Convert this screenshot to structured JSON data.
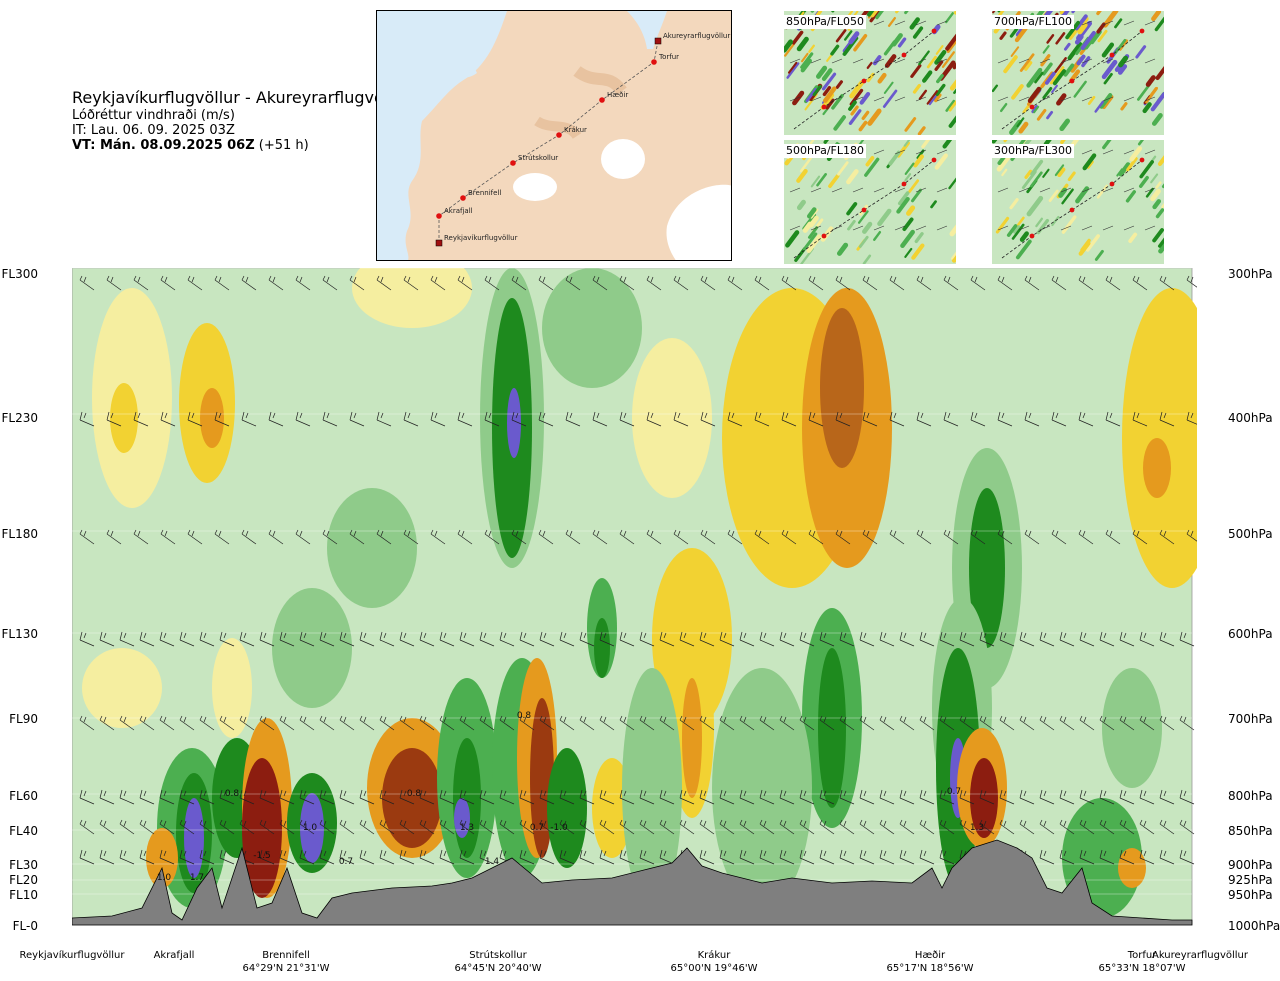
{
  "header": {
    "route": "Reykjavíkurflugvöllur - Akureyrarflugvöllur",
    "variable": "Lóðréttur vindhraði (m/s)",
    "issue_time": "IT: Lau. 06. 09. 2025 03Z",
    "valid_prefix": "VT: Mán. 08.09.2025 06Z",
    "valid_offset": "(+51 h)"
  },
  "map": {
    "points": [
      {
        "label": "Reykjavíkurflugvöllur",
        "kind": "airport"
      },
      {
        "label": "Akrafjall",
        "kind": "waypoint"
      },
      {
        "label": "Brennifell",
        "kind": "waypoint"
      },
      {
        "label": "Strútskollur",
        "kind": "waypoint"
      },
      {
        "label": "Krákur",
        "kind": "waypoint"
      },
      {
        "label": "Hæðir",
        "kind": "waypoint"
      },
      {
        "label": "Torfur",
        "kind": "waypoint"
      },
      {
        "label": "Akureyrarflugvöllur",
        "kind": "airport"
      }
    ]
  },
  "thumbnails": [
    {
      "label": "850hPa/FL050"
    },
    {
      "label": "700hPa/FL100"
    },
    {
      "label": "500hPa/FL180"
    },
    {
      "label": "300hPa/FL300"
    }
  ],
  "levels": [
    {
      "fl": "FL300",
      "hpa": "300hPa"
    },
    {
      "fl": "FL230",
      "hpa": "400hPa"
    },
    {
      "fl": "FL180",
      "hpa": "500hPa"
    },
    {
      "fl": "FL130",
      "hpa": "600hPa"
    },
    {
      "fl": "FL90",
      "hpa": "700hPa"
    },
    {
      "fl": "FL60",
      "hpa": "800hPa"
    },
    {
      "fl": "FL40",
      "hpa": "850hPa"
    },
    {
      "fl": "FL30",
      "hpa": "900hPa"
    },
    {
      "fl": "FL20",
      "hpa": "925hPa"
    },
    {
      "fl": "FL10",
      "hpa": "950hPa"
    },
    {
      "fl": "FL-0",
      "hpa": "1000hPa"
    }
  ],
  "locations": [
    {
      "name": "Reykjavíkurflugvöllur",
      "coord": ""
    },
    {
      "name": "Akrafjall",
      "coord": ""
    },
    {
      "name": "Brennifell",
      "coord": "64°29'N 21°31'W"
    },
    {
      "name": "Strútskollur",
      "coord": "64°45'N 20°40'W"
    },
    {
      "name": "Krákur",
      "coord": "65°00'N 19°46'W"
    },
    {
      "name": "Hæðir",
      "coord": "65°17'N 18°56'W"
    },
    {
      "name": "Torfur",
      "coord": "65°33'N 18°07'W"
    },
    {
      "name": "Akureyrarflugvöllur",
      "coord": ""
    }
  ],
  "contour_labels": [
    "1.0",
    "1.7",
    "0.8",
    "1.0",
    "0.7",
    "0.8",
    "1.3",
    "1.4",
    "0.8",
    "0.7",
    "-1.0",
    "0.7",
    "1.3",
    "-1.5"
  ],
  "colors": {
    "strong_updraft_1": "#1e8a1e",
    "updraft_2": "#4caf50",
    "updraft_3": "#8fcb8a",
    "weak_updraft": "#c8e6c0",
    "calm": "#f4f9e8",
    "weak_downdraft": "#f5eea0",
    "downdraft_2": "#f2d232",
    "downdraft_3": "#e59a1e",
    "strong_downdraft": "#8c1d10",
    "extreme_updraft": "#6a5acd",
    "terrain": "#7f7f7f",
    "sea": "#d8ebf8",
    "land": "#f3d8bd",
    "glacier": "#ffffff"
  }
}
